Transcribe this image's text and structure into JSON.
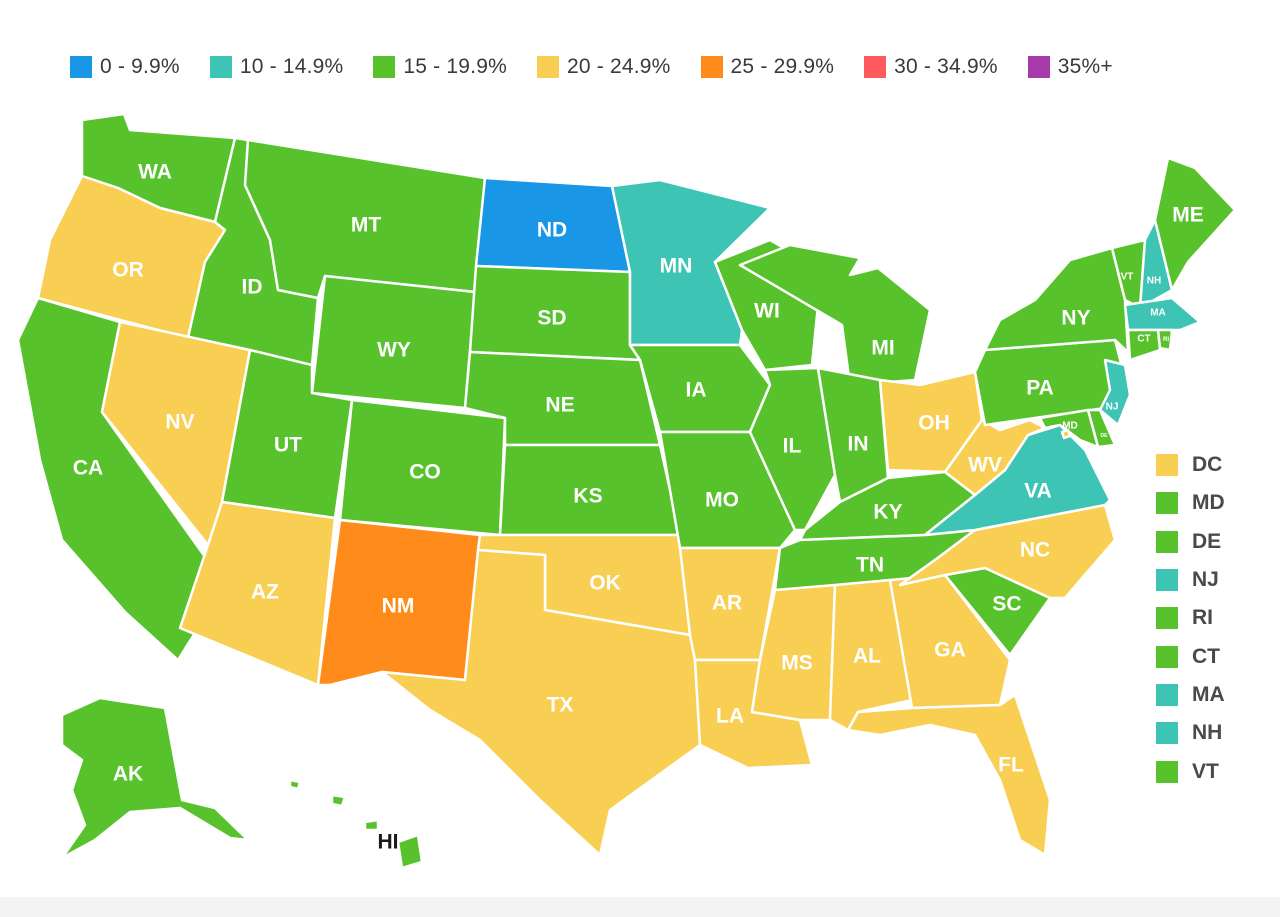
{
  "legend": {
    "items": [
      {
        "label": "0 - 9.9%",
        "color": "#1a96e6"
      },
      {
        "label": "10 - 14.9%",
        "color": "#3dc4b4"
      },
      {
        "label": "15 - 19.9%",
        "color": "#57c22c"
      },
      {
        "label": "20 - 24.9%",
        "color": "#f8cf52"
      },
      {
        "label": "25 - 29.9%",
        "color": "#ff8c1a"
      },
      {
        "label": "30 - 34.9%",
        "color": "#ff5a5f"
      },
      {
        "label": "35%+",
        "color": "#a63aa8"
      }
    ]
  },
  "states": {
    "WA": {
      "label": "WA",
      "bucket": 2
    },
    "OR": {
      "label": "OR",
      "bucket": 3
    },
    "CA": {
      "label": "CA",
      "bucket": 2
    },
    "ID": {
      "label": "ID",
      "bucket": 2
    },
    "NV": {
      "label": "NV",
      "bucket": 3
    },
    "MT": {
      "label": "MT",
      "bucket": 2
    },
    "WY": {
      "label": "WY",
      "bucket": 2
    },
    "UT": {
      "label": "UT",
      "bucket": 2
    },
    "AZ": {
      "label": "AZ",
      "bucket": 3
    },
    "CO": {
      "label": "CO",
      "bucket": 2
    },
    "NM": {
      "label": "NM",
      "bucket": 4
    },
    "ND": {
      "label": "ND",
      "bucket": 0
    },
    "SD": {
      "label": "SD",
      "bucket": 2
    },
    "NE": {
      "label": "NE",
      "bucket": 2
    },
    "KS": {
      "label": "KS",
      "bucket": 2
    },
    "OK": {
      "label": "OK",
      "bucket": 3
    },
    "TX": {
      "label": "TX",
      "bucket": 3
    },
    "MN": {
      "label": "MN",
      "bucket": 1
    },
    "IA": {
      "label": "IA",
      "bucket": 2
    },
    "MO": {
      "label": "MO",
      "bucket": 2
    },
    "AR": {
      "label": "AR",
      "bucket": 3
    },
    "LA": {
      "label": "LA",
      "bucket": 3
    },
    "WI": {
      "label": "WI",
      "bucket": 2
    },
    "IL": {
      "label": "IL",
      "bucket": 2
    },
    "MI": {
      "label": "MI",
      "bucket": 2
    },
    "IN": {
      "label": "IN",
      "bucket": 2
    },
    "OH": {
      "label": "OH",
      "bucket": 3
    },
    "KY": {
      "label": "KY",
      "bucket": 2
    },
    "TN": {
      "label": "TN",
      "bucket": 2
    },
    "MS": {
      "label": "MS",
      "bucket": 3
    },
    "AL": {
      "label": "AL",
      "bucket": 3
    },
    "GA": {
      "label": "GA",
      "bucket": 3
    },
    "FL": {
      "label": "FL",
      "bucket": 3
    },
    "SC": {
      "label": "SC",
      "bucket": 2
    },
    "NC": {
      "label": "NC",
      "bucket": 3
    },
    "VA": {
      "label": "VA",
      "bucket": 1
    },
    "WV": {
      "label": "WV",
      "bucket": 3
    },
    "PA": {
      "label": "PA",
      "bucket": 2
    },
    "NY": {
      "label": "NY",
      "bucket": 2
    },
    "VT": {
      "label": "VT",
      "bucket": 2
    },
    "NH": {
      "label": "NH",
      "bucket": 1
    },
    "ME": {
      "label": "ME",
      "bucket": 2
    },
    "MA": {
      "label": "MA",
      "bucket": 1
    },
    "RI": {
      "label": "RI",
      "bucket": 2
    },
    "CT": {
      "label": "CT",
      "bucket": 2
    },
    "NJ": {
      "label": "NJ",
      "bucket": 1
    },
    "DE": {
      "label": "DE",
      "bucket": 2
    },
    "MD": {
      "label": "MD",
      "bucket": 2
    },
    "DC": {
      "label": "DC",
      "bucket": 3
    },
    "AK": {
      "label": "AK",
      "bucket": 2
    },
    "HI": {
      "label": "HI",
      "bucket": 2
    }
  },
  "east_legend": {
    "items": [
      {
        "state": "DC",
        "label": "DC"
      },
      {
        "state": "MD",
        "label": "MD"
      },
      {
        "state": "DE",
        "label": "DE"
      },
      {
        "state": "NJ",
        "label": "NJ"
      },
      {
        "state": "RI",
        "label": "RI"
      },
      {
        "state": "CT",
        "label": "CT"
      },
      {
        "state": "MA",
        "label": "MA"
      },
      {
        "state": "NH",
        "label": "NH"
      },
      {
        "state": "VT",
        "label": "VT"
      }
    ]
  }
}
